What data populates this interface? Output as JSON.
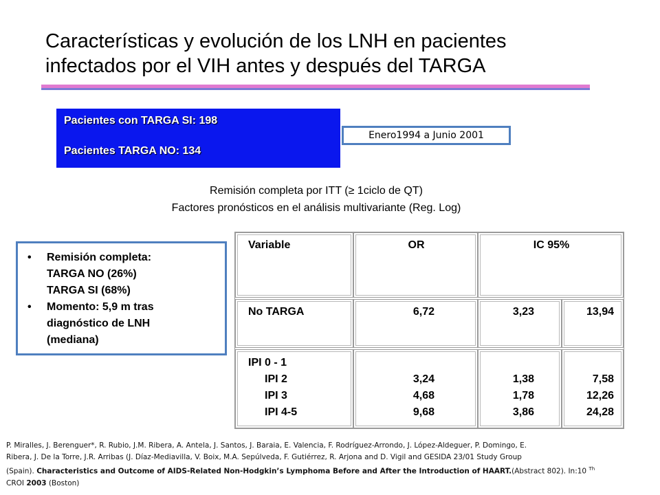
{
  "title": {
    "line1": "Características y evolución de los LNH en pacientes",
    "line2": "infectados por  el VIH antes y después del TARGA"
  },
  "patients": {
    "targa_si": "Pacientes con TARGA SI: 198",
    "targa_no": "Pacientes TARGA NO: 134"
  },
  "period": "Enero1994 a Junio 2001",
  "subtitle": {
    "line1": "Remisión completa por ITT (≥ 1ciclo de QT)",
    "line2": "Factores pronósticos en el análisis multivariante (Reg. Log)"
  },
  "summary": {
    "bullet1_l1": "Remisión completa:",
    "bullet1_l2": "TARGA  NO (26%)",
    "bullet1_l3": "TARGA  SI   (68%)",
    "bullet2_l1": "Momento: 5,9 m tras",
    "bullet2_l2": "diagnóstico de LNH",
    "bullet2_l3": "(mediana)"
  },
  "table": {
    "headers": {
      "variable": "Variable",
      "or": "OR",
      "ic": "IC 95%"
    },
    "row_targa": {
      "variable": "No TARGA",
      "or": "6,72",
      "ic_low": "3,23",
      "ic_high": "13,94"
    },
    "row_ipi": {
      "ref_label": "IPI 0 - 1",
      "labels": [
        "IPI 2",
        "IPI 3",
        "IPI 4-5"
      ],
      "or": [
        "3,24",
        "4,68",
        "9,68"
      ],
      "ic_low": [
        "1,38",
        "1,78",
        "3,86"
      ],
      "ic_high": [
        "7,58",
        "12,26",
        "24,28"
      ]
    }
  },
  "reference": {
    "authors_l1": "P. Miralles, J. Berenguer*, R. Rubio, J.M. Ribera, A. Antela, J. Santos, J. Baraia, E. Valencia, F. Rodríguez-Arrondo, J. López-Aldeguer, P. Domingo, E.",
    "authors_l2": "Ribera, J. De la Torre, J.R. Arribas (J. Díaz-Mediavilla, V. Boix, M.A. Sepúlveda, F. Gutiérrez, R. Arjona and D. Vigil and GESIDA 23/01 Study Group",
    "pre_l3": "(Spain). ",
    "article_title": "Characteristics and Outcome of AIDS-Related Non-Hodgkin’s Lymphoma Before and After the Introduction of HAART.",
    "abstract": "(Abstract 802). In:10 ",
    "th": "Th",
    "conf": "CROI ",
    "year": "2003",
    "place": "  (Boston)"
  }
}
